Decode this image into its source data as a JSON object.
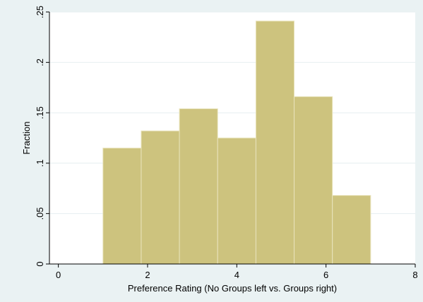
{
  "chart_data": {
    "type": "bar",
    "xlabel": "Preference Rating (No Groups left vs. Groups right)",
    "ylabel": "Fraction",
    "xlim": [
      -0.2,
      8.0
    ],
    "ylim": [
      0,
      0.25
    ],
    "x_ticks": [
      {
        "value": 0,
        "label": "0"
      },
      {
        "value": 2,
        "label": "2"
      },
      {
        "value": 4,
        "label": "4"
      },
      {
        "value": 6,
        "label": "6"
      },
      {
        "value": 8,
        "label": "8"
      }
    ],
    "y_ticks": [
      {
        "value": 0,
        "label": "0"
      },
      {
        "value": 0.05,
        "label": ".05"
      },
      {
        "value": 0.1,
        "label": ".1"
      },
      {
        "value": 0.15,
        "label": ".15"
      },
      {
        "value": 0.2,
        "label": ".2"
      },
      {
        "value": 0.25,
        "label": ".25"
      }
    ],
    "bins": [
      {
        "x0": 1.0,
        "x1": 1.857,
        "value": 0.115
      },
      {
        "x0": 1.857,
        "x1": 2.714,
        "value": 0.132
      },
      {
        "x0": 2.714,
        "x1": 3.571,
        "value": 0.154
      },
      {
        "x0": 3.571,
        "x1": 4.429,
        "value": 0.125
      },
      {
        "x0": 4.429,
        "x1": 5.286,
        "value": 0.241
      },
      {
        "x0": 5.286,
        "x1": 6.143,
        "value": 0.166
      },
      {
        "x0": 6.143,
        "x1": 7.0,
        "value": 0.068
      }
    ],
    "grid": true,
    "bar_color": "#cdc37e",
    "bar_edge_color": "#e9e4bd",
    "grid_color": "#e6eef0",
    "plot_bg": "#ffffff",
    "outer_bg": "#eaf2f3"
  }
}
